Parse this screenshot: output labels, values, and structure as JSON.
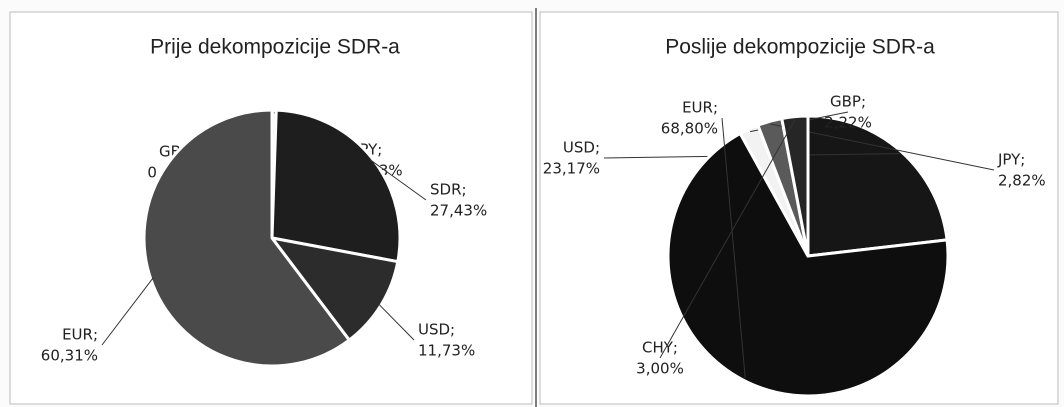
{
  "chart_data": [
    {
      "type": "pie",
      "title": "Prije dekompozicije SDR-a",
      "categories": [
        "GBP;",
        "JPY;",
        "SDR;",
        "USD;",
        "EUR;"
      ],
      "values": [
        0,
        0.53,
        27.43,
        11.73,
        60.31
      ],
      "value_labels": [
        "0,00%",
        "0,53%",
        "27,43%",
        "11,73%",
        "60,31%"
      ],
      "colors": [
        "#eeeeee",
        "#f4f4f4",
        "#1e1e1e",
        "#2c2c2c",
        "#4a4a4a"
      ]
    },
    {
      "type": "pie",
      "title": "Poslije dekompozicije SDR-a",
      "categories": [
        "USD;",
        "EUR;",
        "GBP;",
        "JPY;",
        "CHY;"
      ],
      "values": [
        23.17,
        68.8,
        2.22,
        2.82,
        3.0
      ],
      "value_labels": [
        "23,17%",
        "68,80%",
        "2,22%",
        "2,82%",
        "3,00%"
      ],
      "colors": [
        "#161616",
        "#0e0e0e",
        "#f2f2f2",
        "#5a5a5a",
        "#262626"
      ]
    }
  ]
}
